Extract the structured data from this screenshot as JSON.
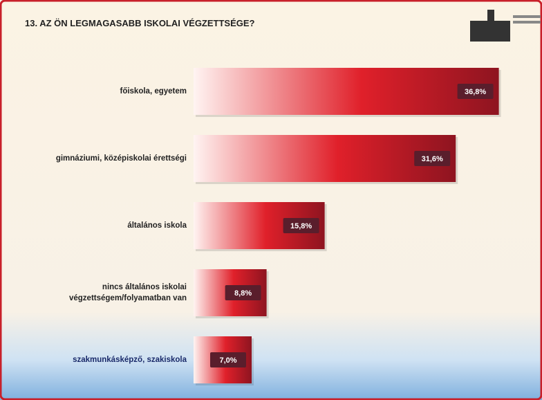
{
  "chart_data": {
    "type": "bar",
    "orientation": "horizontal",
    "title": "13. AZ ÖN LEGMAGASABB ISKOLAI VÉGZETTSÉGE?",
    "categories": [
      "főiskola, egyetem",
      "gimnáziumi, középiskolai érettségi",
      "általános iskola",
      "nincs általános iskolai\nvégzettségem/folyamatban van",
      "szakmunkásképző, szakiskola"
    ],
    "values": [
      36.8,
      31.6,
      15.8,
      8.8,
      7.0
    ],
    "value_labels": [
      "36,8%",
      "31,6%",
      "15,8%",
      "8,8%",
      "7,0%"
    ],
    "color": "#d42020"
  }
}
